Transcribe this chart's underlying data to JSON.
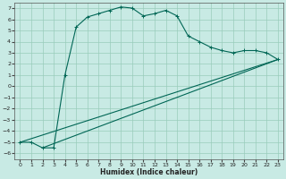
{
  "xlabel": "Humidex (Indice chaleur)",
  "bg_color": "#c8eae4",
  "grid_color": "#99ccbb",
  "line_color": "#006655",
  "xlim": [
    -0.5,
    23.5
  ],
  "ylim": [
    -6.5,
    7.5
  ],
  "xticks": [
    0,
    1,
    2,
    3,
    4,
    5,
    6,
    7,
    8,
    9,
    10,
    11,
    12,
    13,
    14,
    15,
    16,
    17,
    18,
    19,
    20,
    21,
    22,
    23
  ],
  "yticks": [
    -6,
    -5,
    -4,
    -3,
    -2,
    -1,
    0,
    1,
    2,
    3,
    4,
    5,
    6,
    7
  ],
  "line1_x": [
    0,
    1,
    2,
    3,
    4,
    5,
    6,
    7,
    8,
    9,
    10,
    11,
    12,
    13,
    14,
    15,
    16,
    17,
    18,
    19,
    20,
    21,
    22,
    23
  ],
  "line1_y": [
    -5,
    -5,
    -5.5,
    -5.5,
    1.0,
    5.3,
    6.2,
    6.5,
    6.8,
    7.1,
    7.0,
    6.3,
    6.5,
    6.8,
    6.3,
    4.5,
    4.0,
    3.5,
    3.2,
    3.0,
    3.2,
    3.2,
    3.0,
    2.4
  ],
  "line2_x": [
    0,
    23
  ],
  "line2_y": [
    -5.0,
    2.4
  ],
  "line3_x": [
    2,
    23
  ],
  "line3_y": [
    -5.5,
    2.4
  ],
  "marker": "+"
}
